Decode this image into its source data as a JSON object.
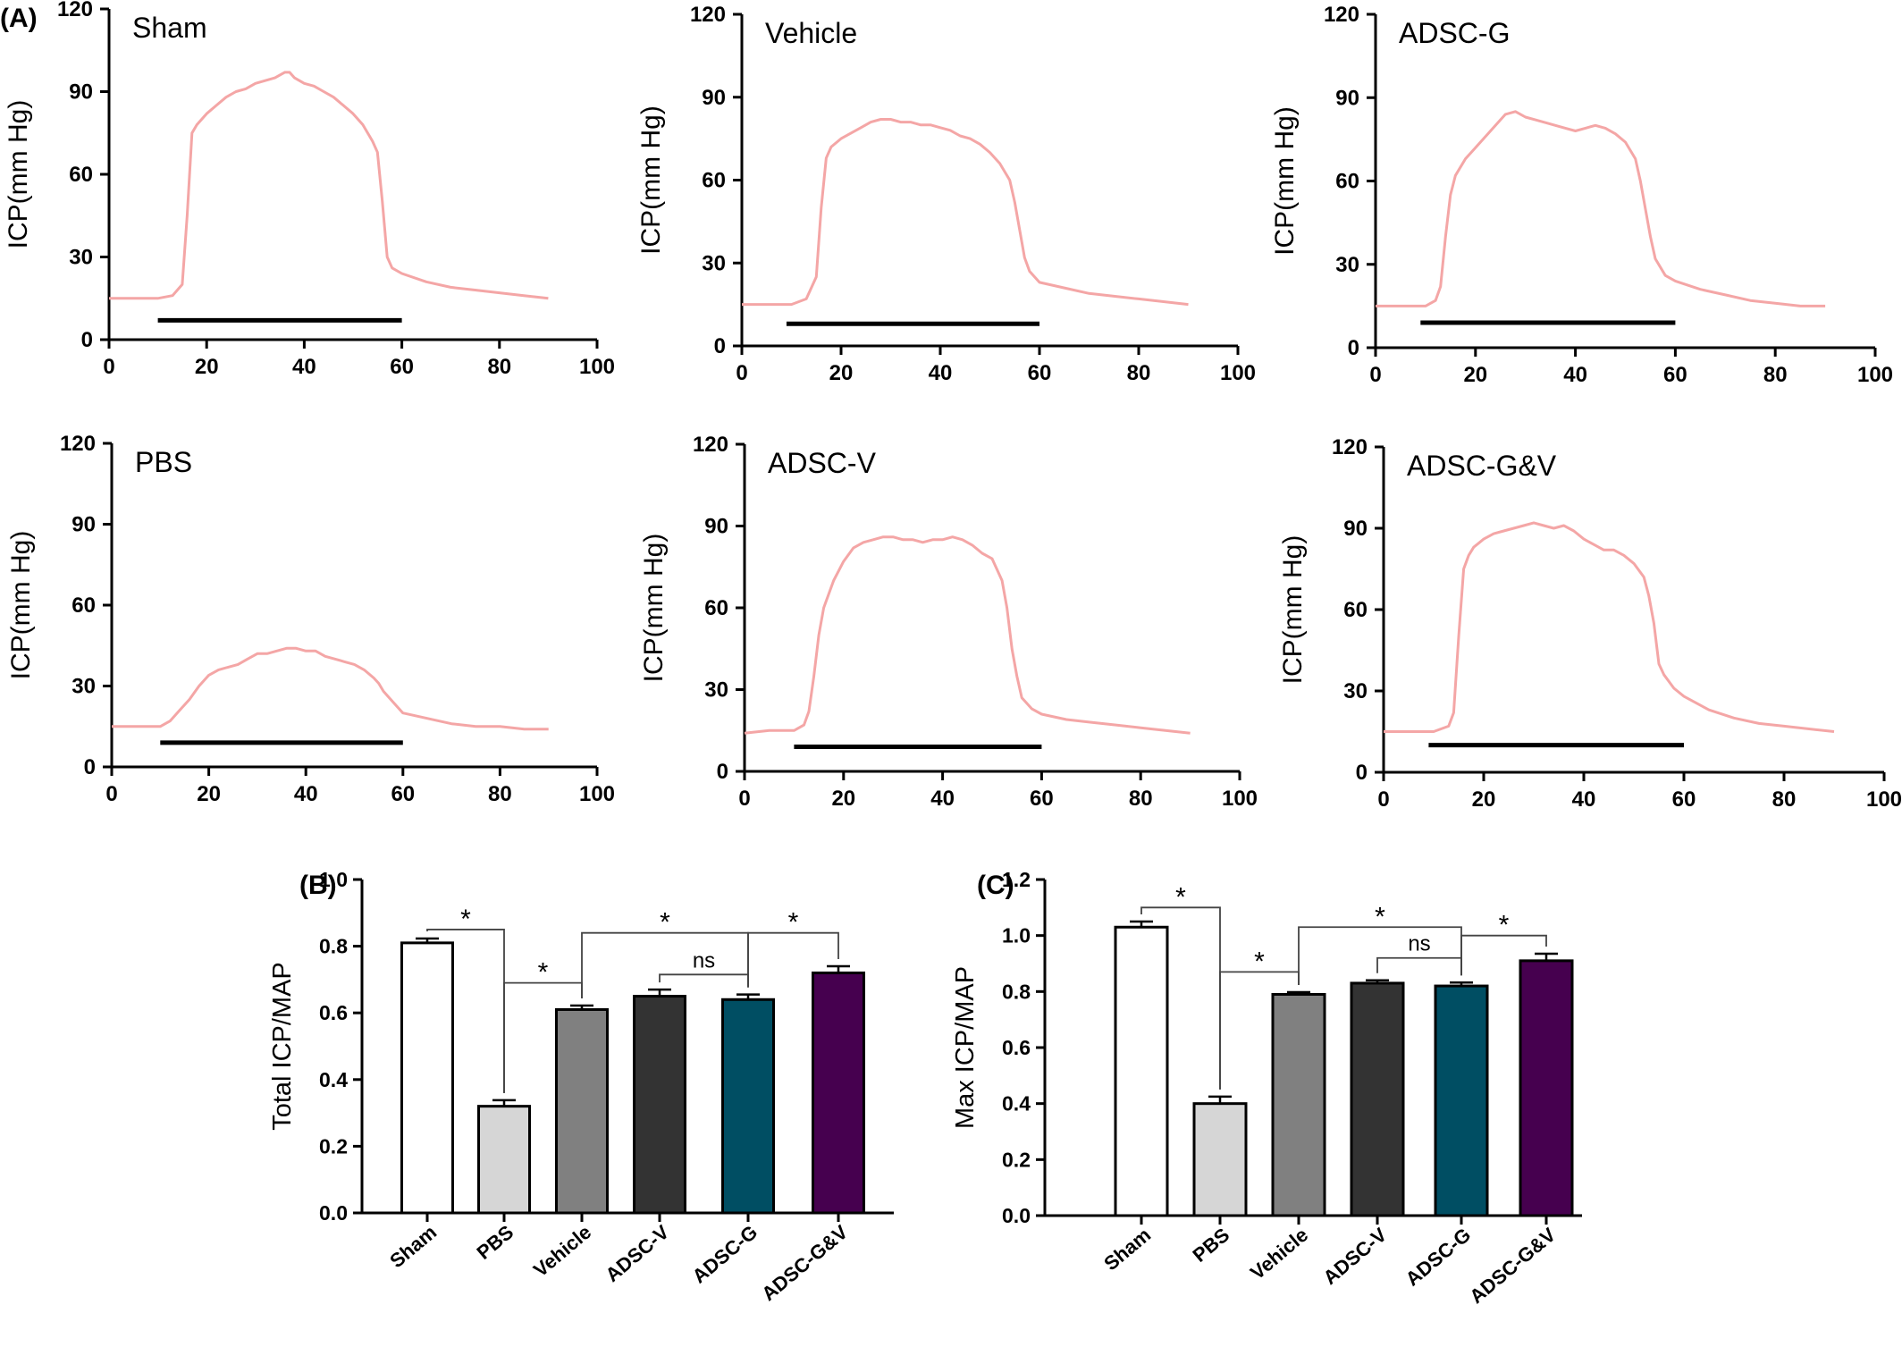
{
  "panel_labels": {
    "a": "(A)",
    "b": "(B)",
    "c": "(C)"
  },
  "colors": {
    "trace": "#f4a6a6",
    "axis": "#000000",
    "sham": "#ffffff",
    "pbs": "#d6d6d6",
    "vehicle": "#808080",
    "adsc_v": "#333333",
    "adsc_g": "#004e63",
    "adsc_gv": "#46004f"
  },
  "chart_data": [
    {
      "type": "line",
      "panel": "A",
      "title": "Sham",
      "xlabel": "",
      "ylabel": "ICP(mm Hg)",
      "xlim": [
        0,
        100
      ],
      "ylim": [
        0,
        120
      ],
      "xticks": [
        "0",
        "20",
        "40",
        "60",
        "80",
        "100"
      ],
      "yticks": [
        "0",
        "30",
        "60",
        "90",
        "120"
      ],
      "series": [
        {
          "x": [
            0,
            5,
            10,
            13,
            15,
            16,
            17,
            18,
            20,
            22,
            24,
            26,
            28,
            30,
            32,
            34,
            36,
            37,
            38,
            40,
            42,
            44,
            46,
            48,
            50,
            52,
            54,
            55,
            56,
            57,
            58,
            60,
            65,
            70,
            75,
            80,
            85,
            90
          ],
          "y": [
            15,
            15,
            15,
            16,
            20,
            45,
            75,
            78,
            82,
            85,
            88,
            90,
            91,
            93,
            94,
            95,
            97,
            97,
            95,
            93,
            92,
            90,
            88,
            85,
            82,
            78,
            72,
            68,
            50,
            30,
            26,
            24,
            21,
            19,
            18,
            17,
            16,
            15
          ]
        }
      ],
      "bar_line": {
        "x": [
          10,
          60
        ],
        "y": 7
      }
    },
    {
      "type": "line",
      "panel": "A",
      "title": "Vehicle",
      "xlabel": "",
      "ylabel": "ICP(mm Hg)",
      "xlim": [
        0,
        100
      ],
      "ylim": [
        0,
        120
      ],
      "xticks": [
        "0",
        "20",
        "40",
        "60",
        "80",
        "100"
      ],
      "yticks": [
        "0",
        "30",
        "60",
        "90",
        "120"
      ],
      "series": [
        {
          "x": [
            0,
            5,
            10,
            13,
            15,
            16,
            17,
            18,
            20,
            22,
            24,
            26,
            28,
            30,
            32,
            34,
            36,
            38,
            40,
            42,
            44,
            46,
            48,
            50,
            52,
            54,
            55,
            56,
            57,
            58,
            60,
            65,
            70,
            75,
            80,
            85,
            90
          ],
          "y": [
            15,
            15,
            15,
            17,
            25,
            50,
            68,
            72,
            75,
            77,
            79,
            81,
            82,
            82,
            81,
            81,
            80,
            80,
            79,
            78,
            76,
            75,
            73,
            70,
            66,
            60,
            52,
            42,
            32,
            27,
            23,
            21,
            19,
            18,
            17,
            16,
            15
          ]
        }
      ],
      "bar_line": {
        "x": [
          9,
          60
        ],
        "y": 8
      }
    },
    {
      "type": "line",
      "panel": "A",
      "title": "ADSC-G",
      "xlabel": "",
      "ylabel": "ICP(mm Hg)",
      "xlim": [
        0,
        100
      ],
      "ylim": [
        0,
        120
      ],
      "xticks": [
        "0",
        "20",
        "40",
        "60",
        "80",
        "100"
      ],
      "yticks": [
        "0",
        "30",
        "60",
        "90",
        "120"
      ],
      "series": [
        {
          "x": [
            0,
            5,
            10,
            12,
            13,
            14,
            15,
            16,
            18,
            20,
            22,
            24,
            26,
            28,
            30,
            32,
            34,
            36,
            38,
            40,
            42,
            44,
            46,
            48,
            50,
            52,
            53,
            54,
            55,
            56,
            58,
            60,
            65,
            70,
            75,
            80,
            85,
            90
          ],
          "y": [
            15,
            15,
            15,
            17,
            22,
            40,
            55,
            62,
            68,
            72,
            76,
            80,
            84,
            85,
            83,
            82,
            81,
            80,
            79,
            78,
            79,
            80,
            79,
            77,
            74,
            68,
            60,
            50,
            40,
            32,
            26,
            24,
            21,
            19,
            17,
            16,
            15,
            15
          ]
        }
      ],
      "bar_line": {
        "x": [
          9,
          60
        ],
        "y": 9
      }
    },
    {
      "type": "line",
      "panel": "A",
      "title": "PBS",
      "xlabel": "",
      "ylabel": "ICP(mm Hg)",
      "xlim": [
        0,
        100
      ],
      "ylim": [
        0,
        120
      ],
      "xticks": [
        "0",
        "20",
        "40",
        "60",
        "80",
        "100"
      ],
      "yticks": [
        "0",
        "30",
        "60",
        "90",
        "120"
      ],
      "series": [
        {
          "x": [
            0,
            5,
            10,
            12,
            14,
            16,
            18,
            20,
            22,
            24,
            26,
            28,
            30,
            32,
            34,
            36,
            38,
            40,
            42,
            44,
            46,
            48,
            50,
            52,
            54,
            55,
            56,
            58,
            60,
            65,
            70,
            75,
            80,
            85,
            90
          ],
          "y": [
            15,
            15,
            15,
            17,
            21,
            25,
            30,
            34,
            36,
            37,
            38,
            40,
            42,
            42,
            43,
            44,
            44,
            43,
            43,
            41,
            40,
            39,
            38,
            36,
            33,
            31,
            28,
            24,
            20,
            18,
            16,
            15,
            15,
            14,
            14
          ]
        }
      ],
      "bar_line": {
        "x": [
          10,
          60
        ],
        "y": 9
      }
    },
    {
      "type": "line",
      "panel": "A",
      "title": "ADSC-V",
      "xlabel": "",
      "ylabel": "ICP(mm Hg)",
      "xlim": [
        0,
        100
      ],
      "ylim": [
        0,
        120
      ],
      "xticks": [
        "0",
        "20",
        "40",
        "60",
        "80",
        "100"
      ],
      "yticks": [
        "0",
        "30",
        "60",
        "90",
        "120"
      ],
      "series": [
        {
          "x": [
            0,
            5,
            10,
            12,
            13,
            14,
            15,
            16,
            18,
            20,
            22,
            24,
            26,
            28,
            30,
            32,
            34,
            36,
            38,
            40,
            42,
            44,
            46,
            48,
            50,
            52,
            53,
            54,
            55,
            56,
            58,
            60,
            65,
            70,
            75,
            80,
            85,
            90
          ],
          "y": [
            14,
            15,
            15,
            17,
            22,
            35,
            50,
            60,
            70,
            77,
            82,
            84,
            85,
            86,
            86,
            85,
            85,
            84,
            85,
            85,
            86,
            85,
            83,
            80,
            78,
            70,
            60,
            45,
            35,
            27,
            23,
            21,
            19,
            18,
            17,
            16,
            15,
            14
          ]
        }
      ],
      "bar_line": {
        "x": [
          10,
          60
        ],
        "y": 9
      }
    },
    {
      "type": "line",
      "panel": "A",
      "title": "ADSC-G&V",
      "xlabel": "",
      "ylabel": "ICP(mm Hg)",
      "xlim": [
        0,
        100
      ],
      "ylim": [
        0,
        120
      ],
      "xticks": [
        "0",
        "20",
        "40",
        "60",
        "80",
        "100"
      ],
      "yticks": [
        "0",
        "30",
        "60",
        "90",
        "120"
      ],
      "series": [
        {
          "x": [
            0,
            5,
            10,
            13,
            14,
            15,
            16,
            17,
            18,
            20,
            22,
            24,
            26,
            28,
            30,
            32,
            34,
            36,
            38,
            40,
            42,
            44,
            46,
            48,
            50,
            52,
            53,
            54,
            55,
            56,
            58,
            60,
            65,
            70,
            75,
            80,
            85,
            90
          ],
          "y": [
            15,
            15,
            15,
            17,
            22,
            50,
            75,
            80,
            83,
            86,
            88,
            89,
            90,
            91,
            92,
            91,
            90,
            91,
            89,
            86,
            84,
            82,
            82,
            80,
            77,
            72,
            65,
            55,
            40,
            36,
            31,
            28,
            23,
            20,
            18,
            17,
            16,
            15
          ]
        }
      ],
      "bar_line": {
        "x": [
          9,
          60
        ],
        "y": 10
      }
    },
    {
      "type": "bar",
      "panel": "B",
      "title": "",
      "xlabel": "",
      "ylabel": "Total ICP/MAP",
      "ylim": [
        0,
        1.0
      ],
      "yticks": [
        "0.0",
        "0.2",
        "0.4",
        "0.6",
        "0.8",
        "1.0"
      ],
      "categories": [
        "Sham",
        "PBS",
        "Vehicle",
        "ADSC-V",
        "ADSC-G",
        "ADSC-G&V"
      ],
      "values": [
        0.81,
        0.32,
        0.61,
        0.65,
        0.64,
        0.72
      ],
      "errors": [
        0.013,
        0.018,
        0.012,
        0.02,
        0.015,
        0.02
      ],
      "significance": [
        {
          "from": 0,
          "to": 1,
          "label": "*",
          "level": 0.85
        },
        {
          "from": 1,
          "to": 2,
          "label": "*",
          "level": 0.69
        },
        {
          "from": 2,
          "to": 4,
          "label": "*",
          "level": 0.84
        },
        {
          "from": 3,
          "to": 4,
          "label": "ns",
          "level": 0.715
        },
        {
          "from": 4,
          "to": 5,
          "label": "*",
          "level": 0.84
        }
      ]
    },
    {
      "type": "bar",
      "panel": "C",
      "title": "",
      "xlabel": "",
      "ylabel": "Max ICP/MAP",
      "ylim": [
        0,
        1.2
      ],
      "yticks": [
        "0.0",
        "0.2",
        "0.4",
        "0.6",
        "0.8",
        "1.0",
        "1.2"
      ],
      "categories": [
        "Sham",
        "PBS",
        "Vehicle",
        "ADSC-V",
        "ADSC-G",
        "ADSC-G&V"
      ],
      "values": [
        1.03,
        0.4,
        0.79,
        0.83,
        0.82,
        0.91
      ],
      "errors": [
        0.02,
        0.025,
        0.008,
        0.01,
        0.012,
        0.025
      ],
      "significance": [
        {
          "from": 0,
          "to": 1,
          "label": "*",
          "level": 1.1
        },
        {
          "from": 1,
          "to": 2,
          "label": "*",
          "level": 0.87
        },
        {
          "from": 2,
          "to": 4,
          "label": "*",
          "level": 1.03
        },
        {
          "from": 3,
          "to": 4,
          "label": "ns",
          "level": 0.92
        },
        {
          "from": 4,
          "to": 5,
          "label": "*",
          "level": 1.0
        }
      ]
    }
  ]
}
